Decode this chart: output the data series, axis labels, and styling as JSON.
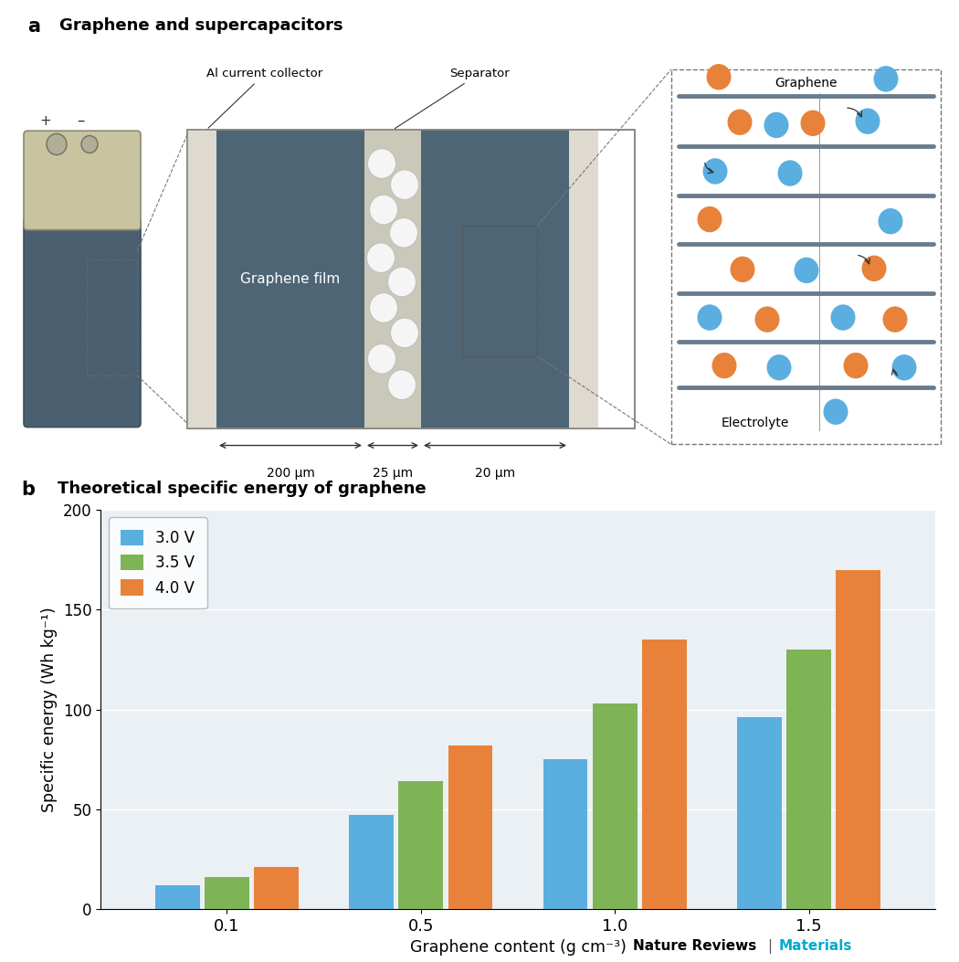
{
  "panel_a_title": "Graphene and supercapacitors",
  "panel_b_title": "Theoretical specific energy of graphene",
  "panel_b_label": "b",
  "panel_a_label": "a",
  "bar_categories": [
    "0.1",
    "0.5",
    "1.0",
    "1.5"
  ],
  "bar_values_3v": [
    12,
    47,
    75,
    96
  ],
  "bar_values_35v": [
    16,
    64,
    103,
    130
  ],
  "bar_values_4v": [
    21,
    82,
    135,
    170
  ],
  "bar_color_3v": "#5BAEE0",
  "bar_color_35v": "#7EB356",
  "bar_color_4v": "#E8823A",
  "ylabel": "Specific energy (Wh kg⁻¹)",
  "xlabel": "Graphene content (g cm⁻³)",
  "ylim": [
    0,
    200
  ],
  "legend_labels": [
    "3.0 V",
    "3.5 V",
    "4.0 V"
  ],
  "bg_color_chart": "#EBF0F5",
  "orange_dot": "#E8823A",
  "blue_dot": "#5BAEE0",
  "nature_reviews_color": "#000000",
  "materials_color": "#00AACC",
  "dim_200": "200 μm",
  "dim_25": "25 μm",
  "dim_20": "20 μm",
  "label_graphene_film": "Graphene film",
  "label_separator": "Separator",
  "label_al_collector": "Al current collector",
  "label_graphene": "Graphene",
  "label_electrolyte": "Electrolyte"
}
